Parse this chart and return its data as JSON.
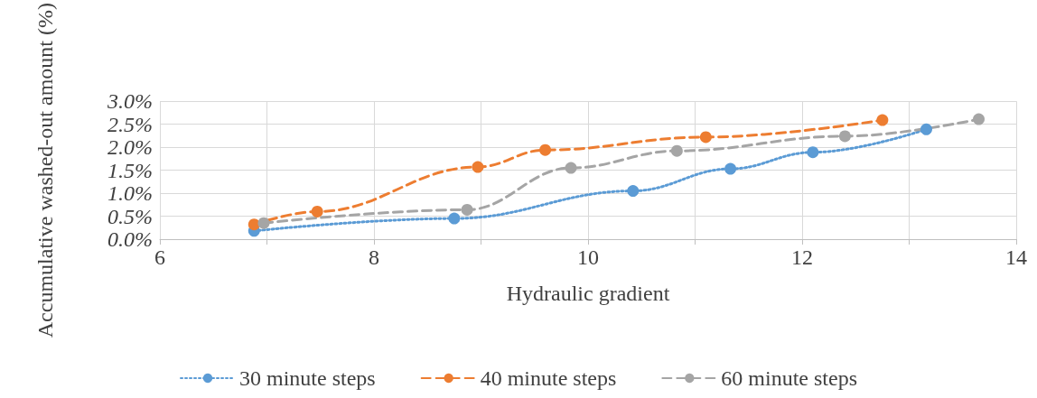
{
  "chart_data": {
    "type": "line",
    "xlabel": "Hydraulic gradient",
    "ylabel": "Accumulative washed-out amount (%)",
    "xlim": [
      6,
      14
    ],
    "xticks": [
      6,
      {
        "value": 7,
        "label": null
      },
      8,
      {
        "value": 9,
        "label": null
      },
      10,
      {
        "value": 11,
        "label": null
      },
      12,
      {
        "value": 13,
        "label": null
      },
      14
    ],
    "ylim": [
      0,
      3
    ],
    "yticks": [
      {
        "value": 0,
        "label": "0.0%"
      },
      {
        "value": 0.5,
        "label": "0.5%"
      },
      {
        "value": 1,
        "label": "1.0%"
      },
      {
        "value": 1.5,
        "label": "1.5%"
      },
      {
        "value": 2,
        "label": "2.0%"
      },
      {
        "value": 2.5,
        "label": "2.5%"
      },
      {
        "value": 3,
        "label": "3.0%"
      }
    ],
    "grid": true,
    "legend": "bottom",
    "marker": "circle",
    "series": [
      {
        "name": "30 minute steps",
        "color": "#5b9bd5",
        "line_style": "dotted",
        "x": [
          6.88,
          8.75,
          10.42,
          11.33,
          12.1,
          13.16
        ],
        "values": [
          0.18,
          0.45,
          1.05,
          1.53,
          1.89,
          2.39
        ]
      },
      {
        "name": "40 minute steps",
        "color": "#ed7d31",
        "line_style": "dashed",
        "x": [
          6.88,
          7.47,
          8.97,
          9.6,
          11.1,
          12.75
        ],
        "values": [
          0.32,
          0.6,
          1.57,
          1.94,
          2.22,
          2.59
        ]
      },
      {
        "name": "60 minute steps",
        "color": "#a5a5a5",
        "line_style": "dashed",
        "x": [
          6.97,
          8.87,
          9.84,
          10.83,
          12.4,
          13.65
        ],
        "values": [
          0.35,
          0.64,
          1.55,
          1.92,
          2.24,
          2.61
        ]
      }
    ]
  }
}
